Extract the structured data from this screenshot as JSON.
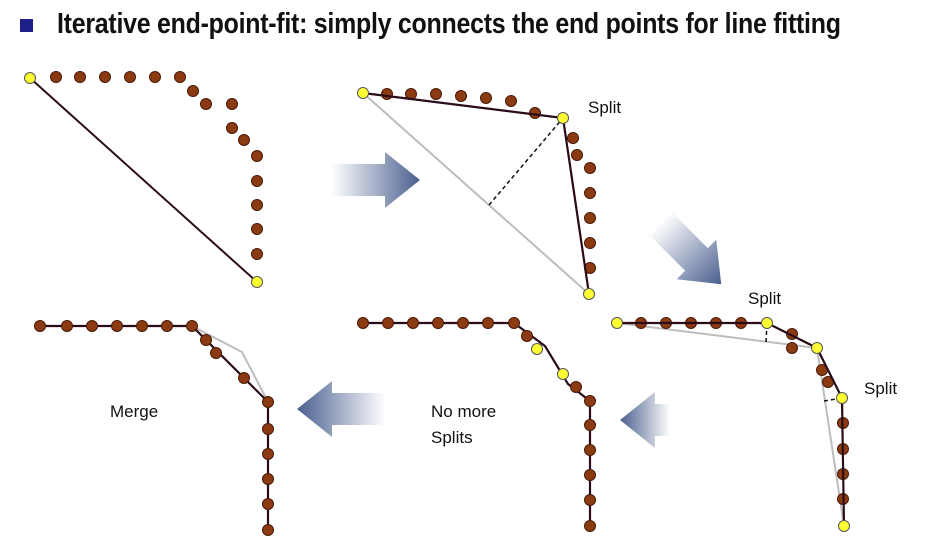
{
  "slide": {
    "title": "Iterative end-point-fit: simply connects the end points for line fitting"
  },
  "labels": {
    "split_1": "Split",
    "split_2": "Split",
    "split_3": "Split",
    "merge": "Merge",
    "no_more_1": "No more",
    "no_more_2": "Splits"
  },
  "colors": {
    "bullet": "#1f1f8a",
    "point_fill": "#8b3a12",
    "point_stroke": "#4a1a06",
    "endpoint_fill": "#ffff33",
    "fit_line": "#2a0b1a",
    "discarded_line": "#bdbdbd",
    "arrow_dark": "#4a5f8f",
    "arrow_light": "#ffffff"
  }
}
